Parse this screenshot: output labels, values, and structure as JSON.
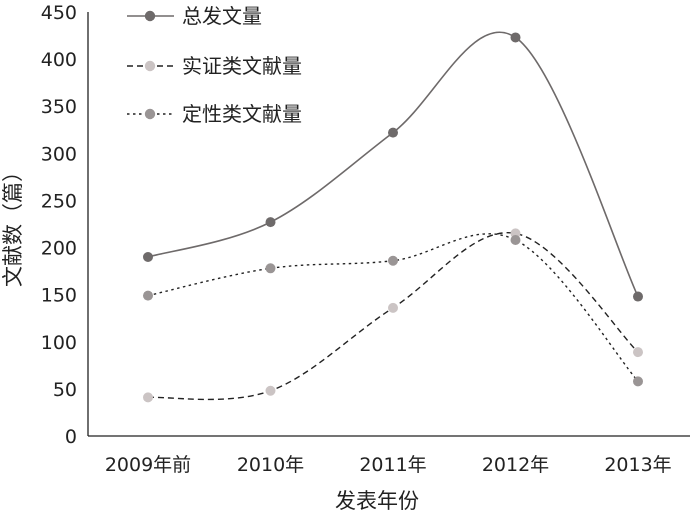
{
  "chart_data": {
    "type": "line",
    "title": "",
    "xlabel": "发表年份",
    "ylabel": "文献数（篇）",
    "categories": [
      "2009年前",
      "2010年",
      "2011年",
      "2012年",
      "2013年"
    ],
    "ylim": [
      0,
      450
    ],
    "yticks": [
      0,
      50,
      100,
      150,
      200,
      250,
      300,
      350,
      400,
      450
    ],
    "grid": false,
    "legend_position": "top-left",
    "series": [
      {
        "name": "总发文量",
        "values": [
          190,
          227,
          322,
          423,
          148
        ],
        "color": "#6e6a6a",
        "marker_color": "#6e6a6a",
        "line_style": "solid"
      },
      {
        "name": "实证类文献量",
        "values": [
          41,
          48,
          136,
          215,
          89
        ],
        "color": "#222222",
        "marker_color": "#cbc4c4",
        "line_style": "dashed"
      },
      {
        "name": "定性类文献量",
        "values": [
          149,
          178,
          186,
          208,
          58
        ],
        "color": "#222222",
        "marker_color": "#9a9595",
        "line_style": "dotted"
      }
    ]
  }
}
